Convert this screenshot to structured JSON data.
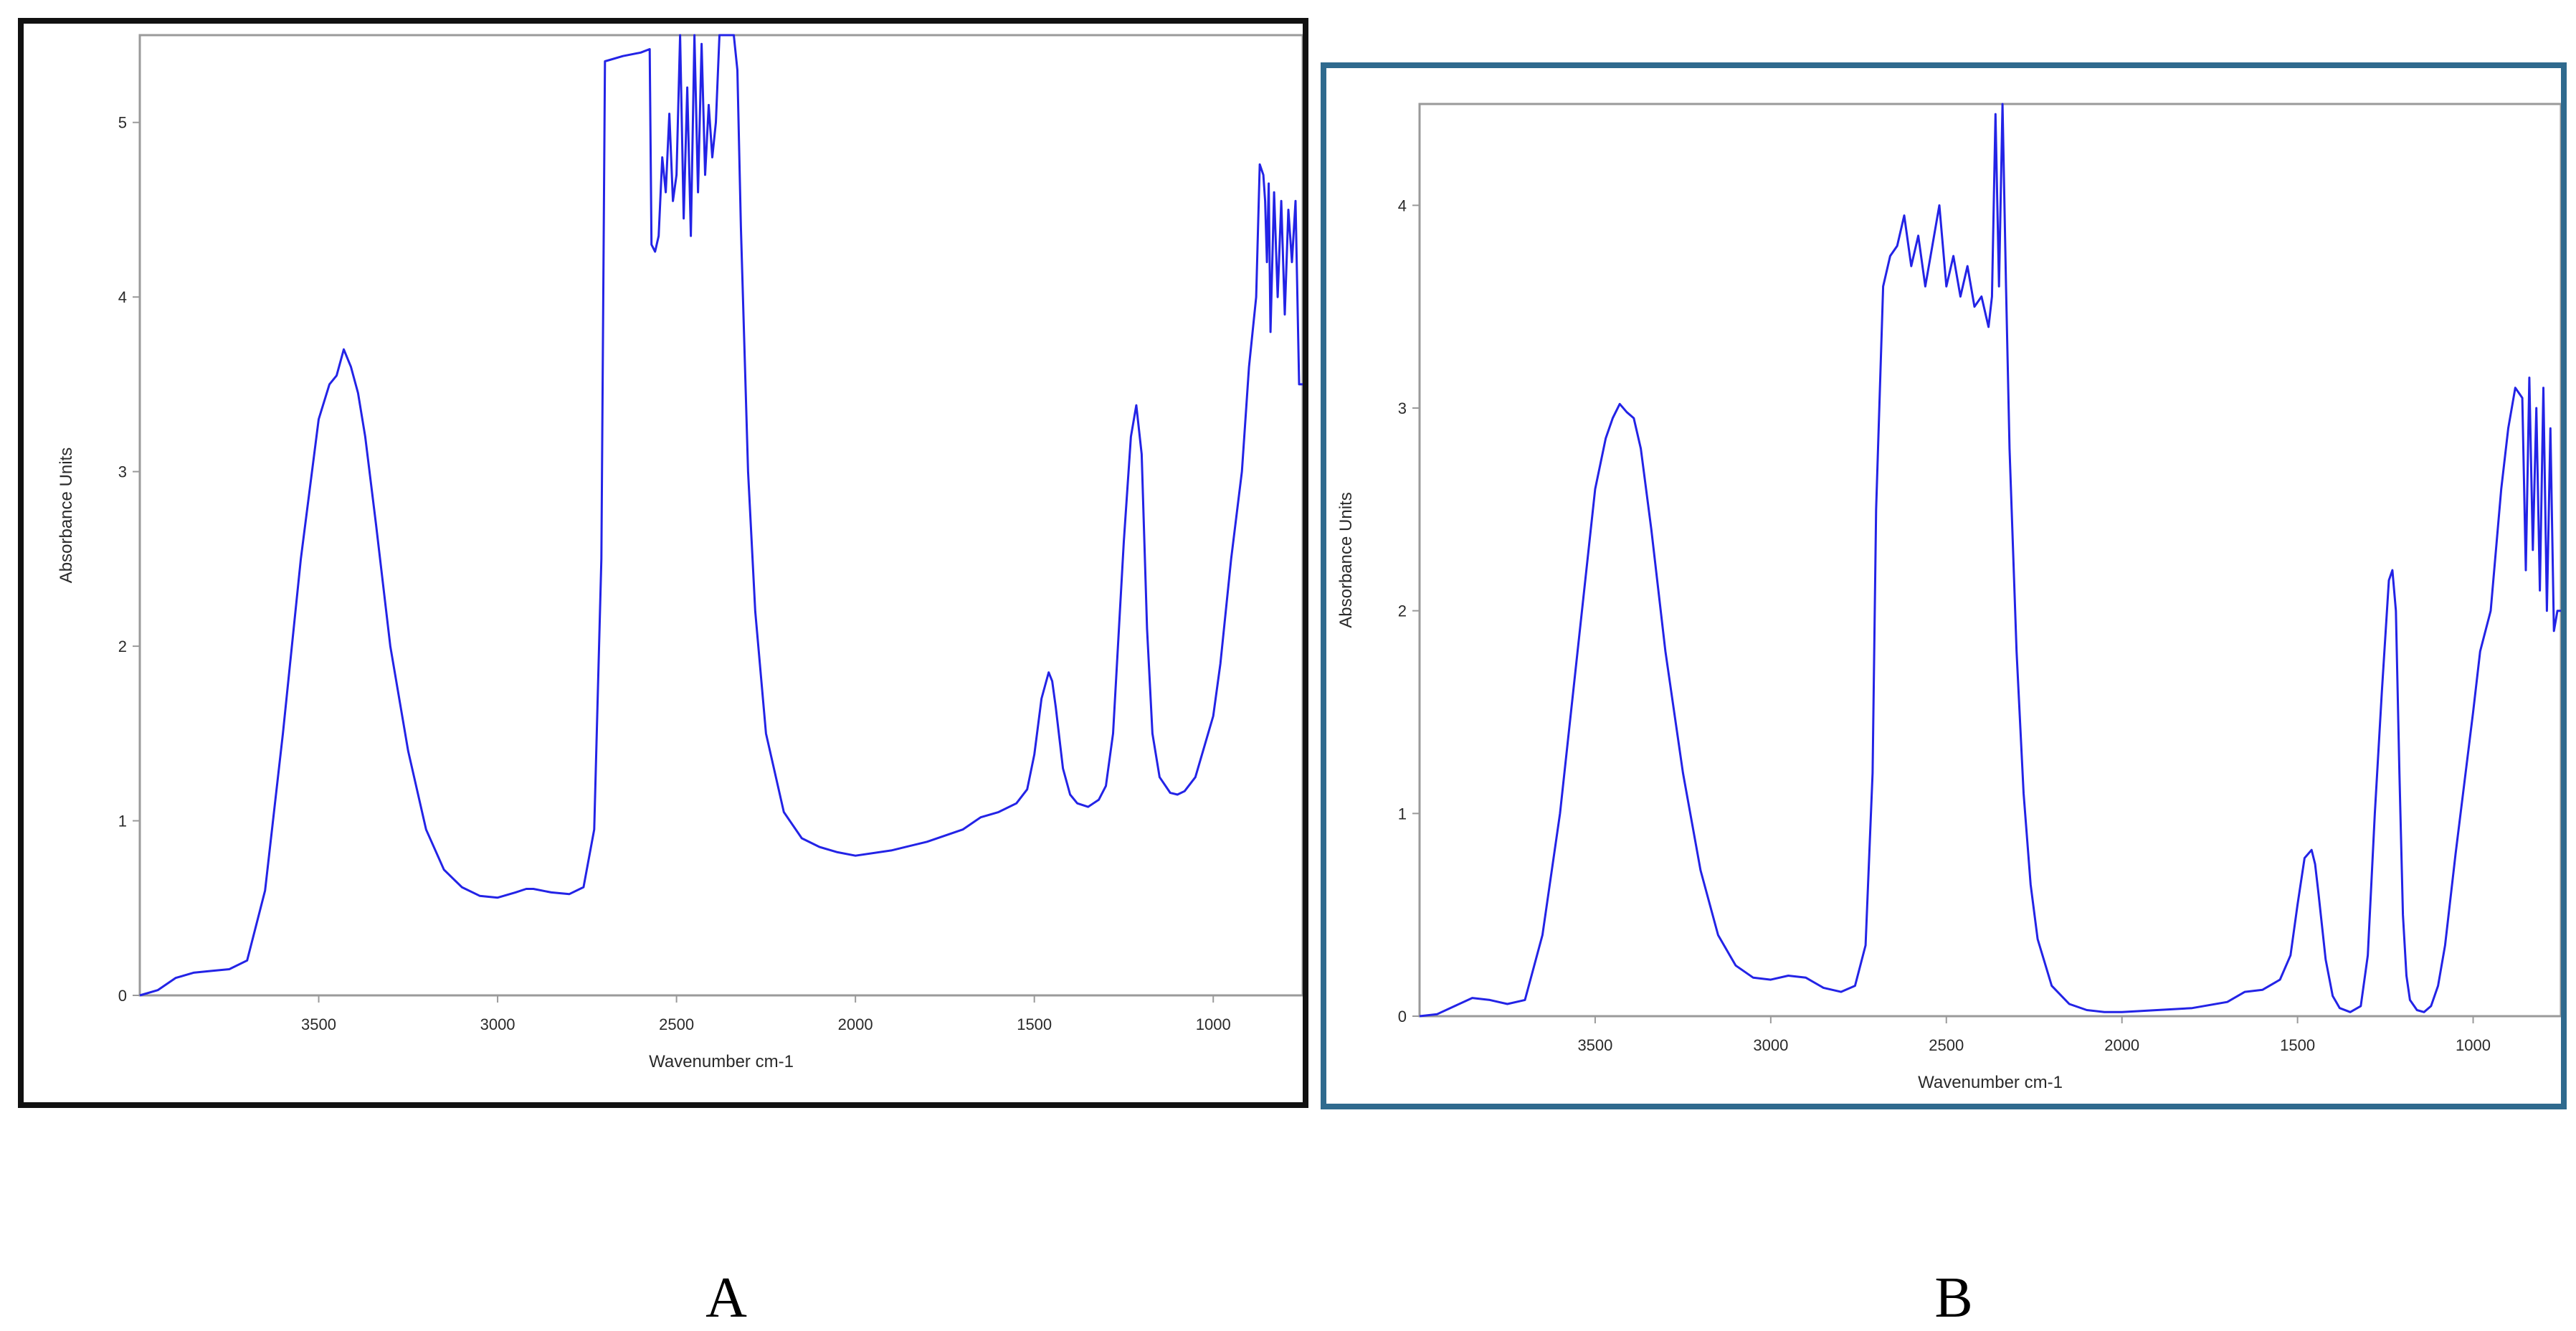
{
  "colors": {
    "trace": "#2323e6",
    "frame_a": "#111111",
    "frame_b": "#2f6a8e",
    "axis": "#9a9a9a"
  },
  "chart_data": [
    {
      "type": "line",
      "panel_label": "A",
      "xlabel": "Wavenumber cm-1",
      "ylabel": "Absorbance Units",
      "xlim": [
        4000,
        750
      ],
      "ylim": [
        0,
        5.5
      ],
      "x_ticks": [
        3500,
        3000,
        2500,
        2000,
        1500,
        1000
      ],
      "y_ticks": [
        0,
        1,
        2,
        3,
        4,
        5
      ],
      "grid": false,
      "series": [
        {
          "x": [
            4000,
            3950,
            3900,
            3850,
            3800,
            3750,
            3700,
            3650,
            3600,
            3550,
            3500,
            3470,
            3450,
            3430,
            3410,
            3390,
            3370,
            3340,
            3300,
            3250,
            3200,
            3150,
            3100,
            3050,
            3000,
            2950,
            2920,
            2900,
            2850,
            2800,
            2760,
            2730,
            2710,
            2700,
            2650,
            2600,
            2575,
            2570,
            2560,
            2550,
            2540,
            2530,
            2520,
            2510,
            2500,
            2490,
            2480,
            2470,
            2460,
            2450,
            2440,
            2430,
            2420,
            2410,
            2400,
            2390,
            2380,
            2370,
            2360,
            2350,
            2340,
            2330,
            2320,
            2300,
            2280,
            2250,
            2200,
            2150,
            2100,
            2050,
            2000,
            1900,
            1800,
            1700,
            1650,
            1600,
            1550,
            1520,
            1500,
            1480,
            1460,
            1450,
            1440,
            1420,
            1400,
            1380,
            1350,
            1320,
            1300,
            1280,
            1250,
            1230,
            1215,
            1200,
            1185,
            1170,
            1150,
            1120,
            1100,
            1080,
            1050,
            1000,
            980,
            950,
            920,
            900,
            880,
            870,
            860,
            855,
            850,
            845,
            840,
            830,
            820,
            810,
            800,
            790,
            780,
            770,
            760,
            750
          ],
          "y": [
            0.0,
            0.03,
            0.1,
            0.13,
            0.14,
            0.15,
            0.2,
            0.6,
            1.5,
            2.5,
            3.3,
            3.5,
            3.55,
            3.7,
            3.6,
            3.45,
            3.2,
            2.7,
            2.0,
            1.4,
            0.95,
            0.72,
            0.62,
            0.57,
            0.56,
            0.59,
            0.61,
            0.61,
            0.59,
            0.58,
            0.62,
            0.95,
            2.5,
            5.35,
            5.38,
            5.4,
            5.42,
            4.3,
            4.26,
            4.35,
            4.8,
            4.6,
            5.05,
            4.55,
            4.7,
            5.5,
            4.45,
            5.2,
            4.35,
            5.5,
            4.6,
            5.45,
            4.7,
            5.1,
            4.8,
            5.0,
            5.5,
            5.5,
            5.5,
            5.5,
            5.5,
            5.3,
            4.4,
            3.0,
            2.2,
            1.5,
            1.05,
            0.9,
            0.85,
            0.82,
            0.8,
            0.83,
            0.88,
            0.95,
            1.02,
            1.05,
            1.1,
            1.18,
            1.38,
            1.7,
            1.85,
            1.8,
            1.65,
            1.3,
            1.15,
            1.1,
            1.08,
            1.12,
            1.2,
            1.5,
            2.6,
            3.2,
            3.38,
            3.1,
            2.1,
            1.5,
            1.25,
            1.16,
            1.15,
            1.17,
            1.25,
            1.6,
            1.9,
            2.5,
            3.0,
            3.6,
            4.0,
            4.76,
            4.7,
            4.55,
            4.2,
            4.65,
            3.8,
            4.6,
            4.0,
            4.55,
            3.9,
            4.5,
            4.2,
            4.55,
            3.5,
            3.5
          ]
        }
      ]
    },
    {
      "type": "line",
      "panel_label": "B",
      "xlabel": "Wavenumber cm-1",
      "ylabel": "Absorbance Units",
      "xlim": [
        4000,
        750
      ],
      "ylim": [
        0,
        4.5
      ],
      "x_ticks": [
        3500,
        3000,
        2500,
        2000,
        1500,
        1000
      ],
      "y_ticks": [
        0,
        1,
        2,
        3,
        4
      ],
      "grid": false,
      "series": [
        {
          "x": [
            4000,
            3950,
            3900,
            3850,
            3800,
            3750,
            3700,
            3650,
            3600,
            3550,
            3500,
            3470,
            3450,
            3430,
            3410,
            3390,
            3370,
            3340,
            3300,
            3250,
            3200,
            3150,
            3100,
            3050,
            3000,
            2950,
            2900,
            2850,
            2800,
            2760,
            2730,
            2710,
            2700,
            2680,
            2660,
            2640,
            2620,
            2600,
            2580,
            2560,
            2540,
            2520,
            2500,
            2480,
            2460,
            2440,
            2420,
            2400,
            2380,
            2370,
            2360,
            2350,
            2340,
            2330,
            2320,
            2300,
            2280,
            2260,
            2240,
            2200,
            2150,
            2100,
            2050,
            2000,
            1900,
            1800,
            1700,
            1650,
            1600,
            1550,
            1520,
            1500,
            1480,
            1460,
            1450,
            1440,
            1420,
            1400,
            1380,
            1350,
            1320,
            1300,
            1280,
            1260,
            1240,
            1230,
            1220,
            1210,
            1200,
            1190,
            1180,
            1160,
            1140,
            1120,
            1100,
            1080,
            1050,
            1000,
            980,
            950,
            920,
            900,
            880,
            860,
            850,
            840,
            830,
            820,
            810,
            800,
            790,
            780,
            770,
            760,
            750
          ],
          "y": [
            0.0,
            0.01,
            0.05,
            0.09,
            0.08,
            0.06,
            0.08,
            0.4,
            1.0,
            1.8,
            2.6,
            2.85,
            2.95,
            3.02,
            2.98,
            2.95,
            2.8,
            2.4,
            1.8,
            1.2,
            0.72,
            0.4,
            0.25,
            0.19,
            0.18,
            0.2,
            0.19,
            0.14,
            0.12,
            0.15,
            0.35,
            1.2,
            2.5,
            3.6,
            3.75,
            3.8,
            3.95,
            3.7,
            3.85,
            3.6,
            3.8,
            4.0,
            3.6,
            3.75,
            3.55,
            3.7,
            3.5,
            3.55,
            3.4,
            3.55,
            4.45,
            3.6,
            4.5,
            3.6,
            2.8,
            1.8,
            1.1,
            0.65,
            0.38,
            0.15,
            0.06,
            0.03,
            0.02,
            0.02,
            0.03,
            0.04,
            0.07,
            0.12,
            0.13,
            0.18,
            0.3,
            0.55,
            0.78,
            0.82,
            0.75,
            0.6,
            0.28,
            0.1,
            0.04,
            0.02,
            0.05,
            0.3,
            1.0,
            1.6,
            2.15,
            2.2,
            2.0,
            1.2,
            0.5,
            0.2,
            0.08,
            0.03,
            0.02,
            0.05,
            0.15,
            0.35,
            0.8,
            1.5,
            1.8,
            2.0,
            2.6,
            2.9,
            3.1,
            3.05,
            2.2,
            3.15,
            2.3,
            3.0,
            2.1,
            3.1,
            2.0,
            2.9,
            1.9,
            2.0,
            2.0
          ]
        }
      ]
    }
  ]
}
